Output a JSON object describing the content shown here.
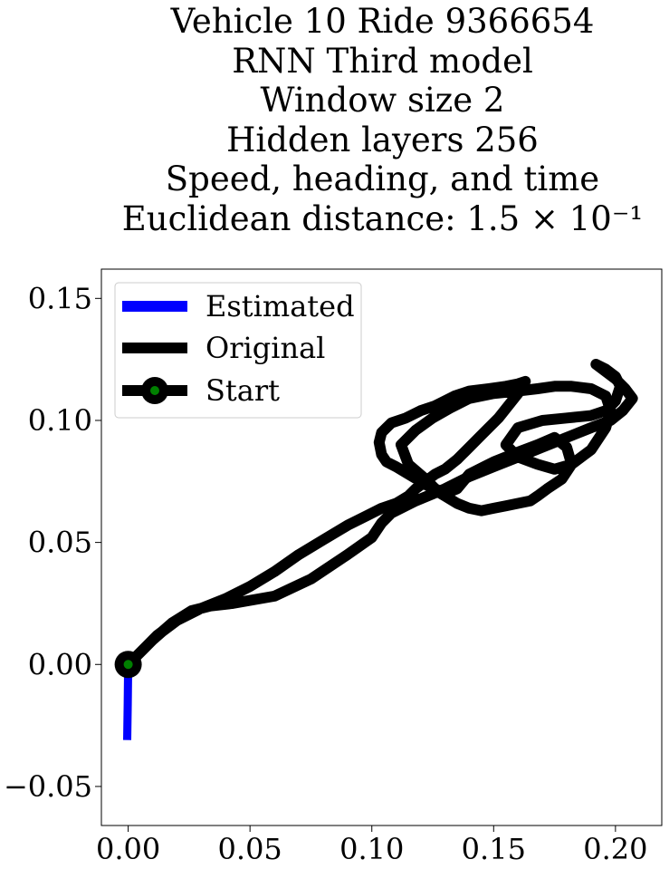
{
  "chart_data": {
    "type": "line",
    "title_lines": [
      "Vehicle 10 Ride 9366654",
      "RNN Third model",
      "Window size 2",
      "Hidden layers 256",
      "Speed, heading, and time",
      "Euclidean distance: 1.5 × 10⁻¹"
    ],
    "xlabel": "",
    "ylabel": "",
    "xlim": [
      -0.011,
      0.219
    ],
    "ylim": [
      -0.066,
      0.162
    ],
    "xticks": [
      {
        "value": 0.0,
        "label": "0.00"
      },
      {
        "value": 0.05,
        "label": "0.05"
      },
      {
        "value": 0.1,
        "label": "0.10"
      },
      {
        "value": 0.15,
        "label": "0.15"
      },
      {
        "value": 0.2,
        "label": "0.20"
      }
    ],
    "yticks": [
      {
        "value": -0.05,
        "label": "−0.05"
      },
      {
        "value": 0.0,
        "label": "0.00"
      },
      {
        "value": 0.05,
        "label": "0.05"
      },
      {
        "value": 0.1,
        "label": "0.10"
      },
      {
        "value": 0.15,
        "label": "0.15"
      }
    ],
    "grid": false,
    "legend_position": "top-left",
    "series": [
      {
        "name": "Estimated",
        "color": "#0000ff",
        "x": [
          0.0,
          -0.0002,
          -0.0004
        ],
        "y": [
          0.0,
          -0.016,
          -0.031
        ]
      },
      {
        "name": "Original",
        "color": "#000000",
        "x": [
          0.0,
          0.004,
          0.01,
          0.018,
          0.026,
          0.034,
          0.043,
          0.06,
          0.075,
          0.09,
          0.1,
          0.104,
          0.108,
          0.118,
          0.13,
          0.14,
          0.15,
          0.16,
          0.17,
          0.18,
          0.19,
          0.198,
          0.203,
          0.207,
          0.204,
          0.2,
          0.196,
          0.192,
          0.196,
          0.2,
          0.202,
          0.2,
          0.196,
          0.19,
          0.18,
          0.17,
          0.16,
          0.155,
          0.16,
          0.168,
          0.175,
          0.182,
          0.19,
          0.196,
          0.198,
          0.196,
          0.19,
          0.182,
          0.175,
          0.168,
          0.16,
          0.15,
          0.14,
          0.132,
          0.125,
          0.118,
          0.112,
          0.115,
          0.122,
          0.126,
          0.13,
          0.135,
          0.14,
          0.15,
          0.16,
          0.168,
          0.175,
          0.18,
          0.182,
          0.178,
          0.172,
          0.168,
          0.165,
          0.16,
          0.155,
          0.15,
          0.145,
          0.14,
          0.135,
          0.13,
          0.125,
          0.12,
          0.115,
          0.11,
          0.106,
          0.104,
          0.103,
          0.104,
          0.108,
          0.114,
          0.12,
          0.126,
          0.13,
          0.134,
          0.14,
          0.148,
          0.155,
          0.16,
          0.163,
          0.16,
          0.152,
          0.145,
          0.14,
          0.135,
          0.13,
          0.126,
          0.122,
          0.118,
          0.115,
          0.11,
          0.104,
          0.098,
          0.09,
          0.08,
          0.07,
          0.06,
          0.05,
          0.04,
          0.03,
          0.02,
          0.012,
          0.006,
          0.0
        ],
        "y": [
          0.0,
          0.004,
          0.01,
          0.017,
          0.022,
          0.024,
          0.025,
          0.028,
          0.035,
          0.045,
          0.052,
          0.058,
          0.062,
          0.067,
          0.072,
          0.077,
          0.081,
          0.085,
          0.089,
          0.093,
          0.097,
          0.1,
          0.104,
          0.109,
          0.113,
          0.117,
          0.12,
          0.123,
          0.121,
          0.118,
          0.114,
          0.108,
          0.104,
          0.102,
          0.101,
          0.1,
          0.097,
          0.09,
          0.085,
          0.082,
          0.08,
          0.082,
          0.088,
          0.097,
          0.104,
          0.11,
          0.113,
          0.114,
          0.114,
          0.113,
          0.112,
          0.111,
          0.109,
          0.105,
          0.101,
          0.096,
          0.09,
          0.082,
          0.076,
          0.072,
          0.07,
          0.072,
          0.078,
          0.083,
          0.087,
          0.09,
          0.093,
          0.089,
          0.082,
          0.076,
          0.072,
          0.069,
          0.067,
          0.066,
          0.065,
          0.064,
          0.063,
          0.064,
          0.066,
          0.069,
          0.072,
          0.075,
          0.078,
          0.081,
          0.083,
          0.086,
          0.091,
          0.095,
          0.099,
          0.101,
          0.104,
          0.106,
          0.108,
          0.11,
          0.112,
          0.113,
          0.114,
          0.115,
          0.116,
          0.111,
          0.101,
          0.094,
          0.089,
          0.084,
          0.08,
          0.078,
          0.075,
          0.072,
          0.069,
          0.066,
          0.064,
          0.061,
          0.057,
          0.051,
          0.045,
          0.038,
          0.032,
          0.027,
          0.023,
          0.018,
          0.012,
          0.006,
          0.0
        ]
      },
      {
        "name": "Start",
        "color": "#008000",
        "edge_color": "#000000",
        "x": [
          0.0
        ],
        "y": [
          0.0
        ]
      }
    ]
  }
}
